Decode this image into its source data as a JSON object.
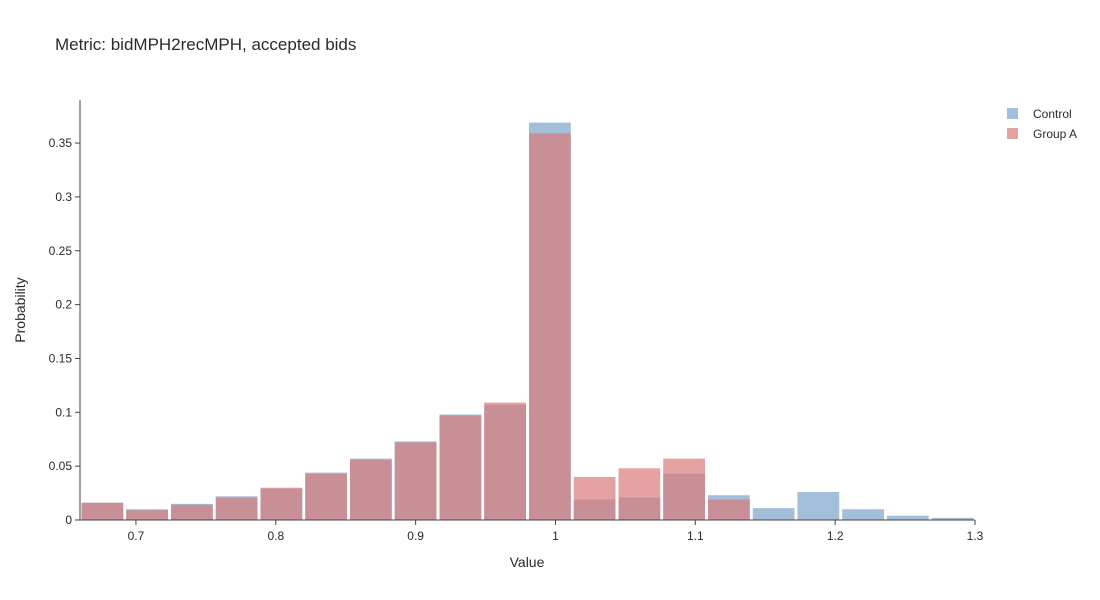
{
  "chart_data": {
    "type": "bar",
    "title": "Metric: bidMPH2recMPH, accepted bids",
    "xlabel": "Value",
    "ylabel": "Probability",
    "xlim": [
      0.66,
      1.3
    ],
    "ylim": [
      0,
      0.39
    ],
    "bin_width": 0.032,
    "x_ticks": [
      "0.7",
      "0.8",
      "0.9",
      "1",
      "1.1",
      "1.2",
      "1.3"
    ],
    "y_ticks": [
      "0",
      "0.05",
      "0.1",
      "0.15",
      "0.2",
      "0.25",
      "0.3",
      "0.35"
    ],
    "grid": false,
    "legend_position": "top-right",
    "bin_starts": [
      0.66,
      0.692,
      0.724,
      0.756,
      0.788,
      0.82,
      0.852,
      0.884,
      0.916,
      0.948,
      0.98,
      1.012,
      1.044,
      1.076,
      1.108,
      1.14,
      1.172,
      1.204,
      1.236,
      1.268
    ],
    "series": [
      {
        "name": "Control",
        "color": "#7aa3c9",
        "values": [
          0.016,
          0.01,
          0.015,
          0.022,
          0.029,
          0.044,
          0.057,
          0.073,
          0.098,
          0.107,
          0.369,
          0.019,
          0.021,
          0.043,
          0.023,
          0.011,
          0.026,
          0.01,
          0.004,
          0.002
        ]
      },
      {
        "name": "Group A",
        "color": "#d97a7a",
        "values": [
          0.016,
          0.009,
          0.014,
          0.021,
          0.03,
          0.043,
          0.056,
          0.072,
          0.097,
          0.109,
          0.359,
          0.04,
          0.048,
          0.057,
          0.019,
          0.0,
          0.0,
          0.0,
          0.0,
          0.0
        ]
      }
    ]
  }
}
